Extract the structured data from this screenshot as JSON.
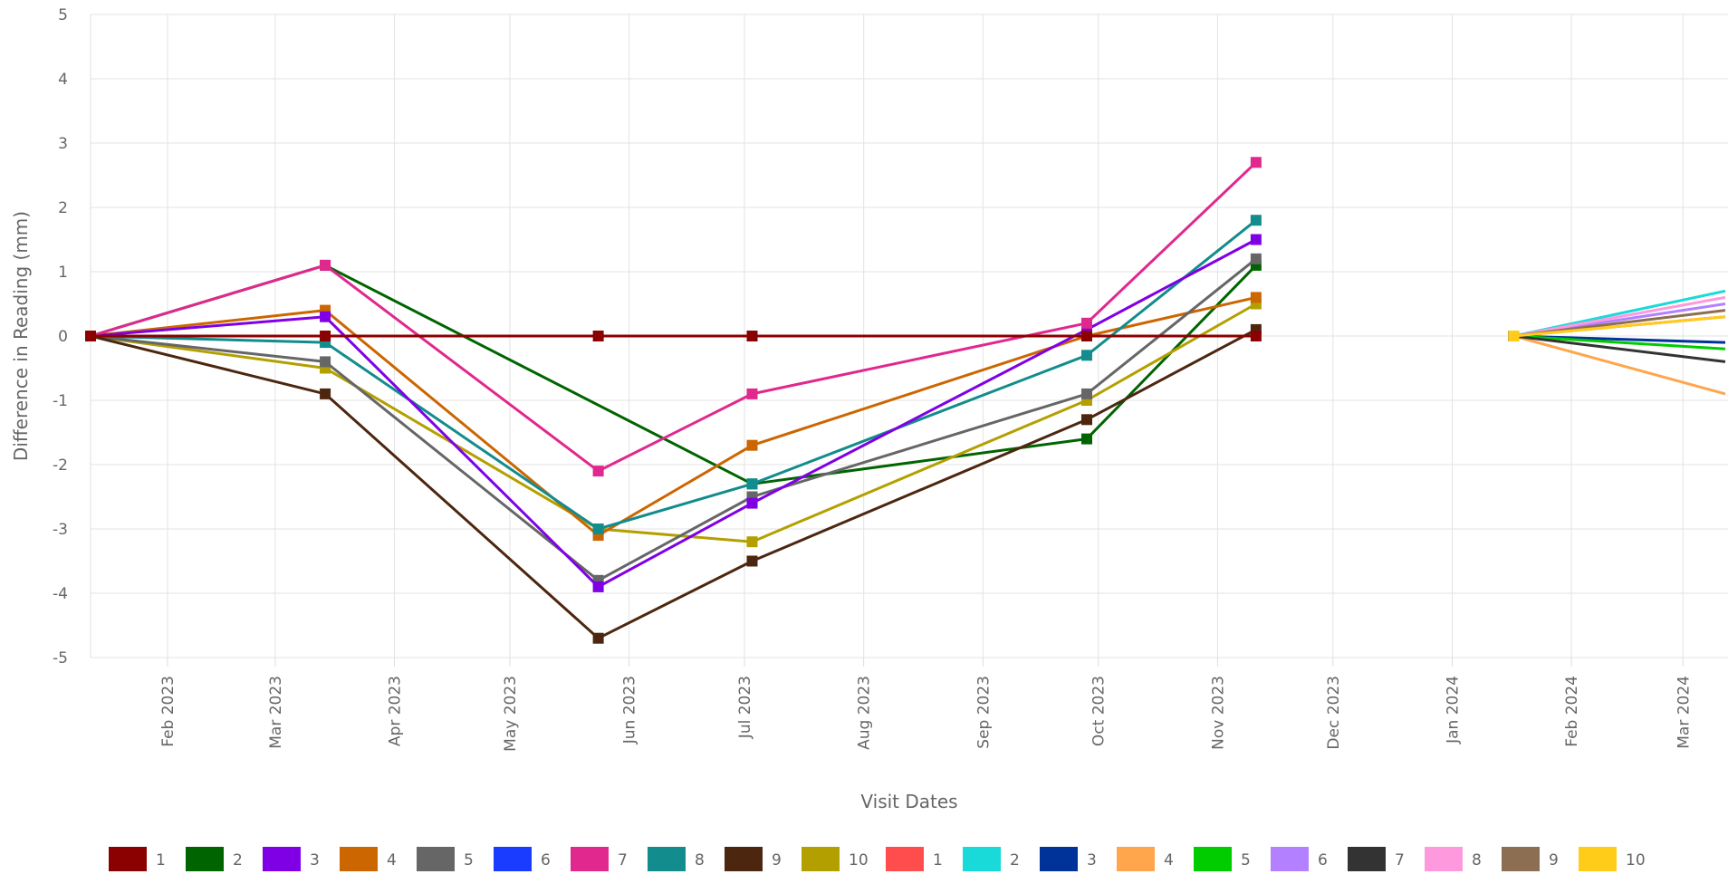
{
  "chart_data": {
    "type": "line",
    "title": "",
    "xlabel": "Visit Dates",
    "ylabel": "Difference in Reading (mm)",
    "ylim": [
      -5,
      5
    ],
    "yticks": [
      "5",
      "4",
      "3",
      "2",
      "1",
      "0",
      "-1",
      "-2",
      "-3",
      "-4",
      "-5"
    ],
    "xlim": [
      "2023-01-12",
      "2024-03-12"
    ],
    "xticks": [
      {
        "date": "2023-02-01",
        "label": "Feb 2023"
      },
      {
        "date": "2023-03-01",
        "label": "Mar 2023"
      },
      {
        "date": "2023-04-01",
        "label": "Apr 2023"
      },
      {
        "date": "2023-05-01",
        "label": "May 2023"
      },
      {
        "date": "2023-06-01",
        "label": "Jun 2023"
      },
      {
        "date": "2023-07-01",
        "label": "Jul 2023"
      },
      {
        "date": "2023-08-01",
        "label": "Aug 2023"
      },
      {
        "date": "2023-09-01",
        "label": "Sep 2023"
      },
      {
        "date": "2023-10-01",
        "label": "Oct 2023"
      },
      {
        "date": "2023-11-01",
        "label": "Nov 2023"
      },
      {
        "date": "2023-12-01",
        "label": "Dec 2023"
      },
      {
        "date": "2024-01-01",
        "label": "Jan 2024"
      },
      {
        "date": "2024-02-01",
        "label": "Feb 2024"
      },
      {
        "date": "2024-03-01",
        "label": "Mar 2024"
      }
    ],
    "grid": true,
    "legend_position": "bottom",
    "dates_group1": [
      "2023-01-12",
      "2023-03-14",
      "2023-05-24",
      "2023-07-03",
      "2023-09-28",
      "2023-11-11"
    ],
    "dates_group2": [
      "2024-01-17",
      "2024-03-12"
    ],
    "series": [
      {
        "name": "1",
        "color": "#8b0000",
        "group": 1,
        "values": [
          0,
          0,
          0,
          0,
          0,
          0
        ]
      },
      {
        "name": "2",
        "color": "#006400",
        "group": 1,
        "values": [
          0,
          1.1,
          null,
          -2.3,
          -1.6,
          1.1
        ]
      },
      {
        "name": "3",
        "color": "#8000e6",
        "group": 1,
        "values": [
          0,
          0.3,
          -3.9,
          -2.6,
          0.1,
          1.5
        ]
      },
      {
        "name": "4",
        "color": "#cc6600",
        "group": 1,
        "values": [
          0,
          0.4,
          -3.1,
          -1.7,
          0,
          0.6
        ]
      },
      {
        "name": "5",
        "color": "#666666",
        "group": 1,
        "values": [
          0,
          -0.4,
          -3.8,
          -2.5,
          -0.9,
          1.2
        ]
      },
      {
        "name": "6",
        "color": "#1a3cff",
        "group": 1,
        "values": []
      },
      {
        "name": "7",
        "color": "#e0288e",
        "group": 1,
        "values": [
          0,
          1.1,
          -2.1,
          -0.9,
          0.2,
          2.7
        ]
      },
      {
        "name": "8",
        "color": "#128c8c",
        "group": 1,
        "values": [
          0,
          -0.1,
          -3.0,
          -2.3,
          -0.3,
          1.8
        ]
      },
      {
        "name": "9",
        "color": "#4d2610",
        "group": 1,
        "values": [
          0,
          -0.9,
          -4.7,
          -3.5,
          -1.3,
          0.1
        ]
      },
      {
        "name": "10",
        "color": "#b3a000",
        "group": 1,
        "values": [
          0,
          -0.5,
          -3.0,
          -3.2,
          -1.0,
          0.5
        ]
      },
      {
        "name": "1",
        "color": "#ff4d4d",
        "group": 2,
        "values": [
          0,
          0.3
        ]
      },
      {
        "name": "2",
        "color": "#1ad9d9",
        "group": 2,
        "values": [
          0,
          0.7
        ]
      },
      {
        "name": "3",
        "color": "#003399",
        "group": 2,
        "values": [
          0,
          -0.1
        ]
      },
      {
        "name": "4",
        "color": "#ffa64d",
        "group": 2,
        "values": [
          0,
          -0.9
        ]
      },
      {
        "name": "5",
        "color": "#00cc00",
        "group": 2,
        "values": [
          0,
          -0.2
        ]
      },
      {
        "name": "6",
        "color": "#b380ff",
        "group": 2,
        "values": [
          0,
          0.5
        ]
      },
      {
        "name": "7",
        "color": "#333333",
        "group": 2,
        "values": [
          0,
          -0.4
        ]
      },
      {
        "name": "8",
        "color": "#ff99dd",
        "group": 2,
        "values": [
          0,
          0.6
        ]
      },
      {
        "name": "9",
        "color": "#8c6e53",
        "group": 2,
        "values": [
          0,
          0.4
        ]
      },
      {
        "name": "10",
        "color": "#ffcc1a",
        "group": 2,
        "values": [
          0,
          0.3
        ]
      }
    ]
  }
}
